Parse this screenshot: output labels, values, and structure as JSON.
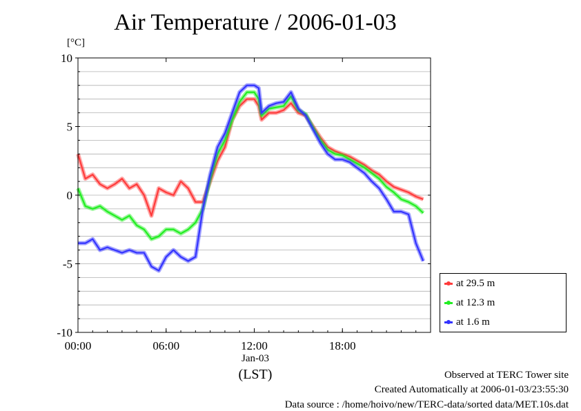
{
  "chart_data": {
    "type": "line",
    "title": "Air Temperature / 2006-01-03",
    "y_unit": "[°C]",
    "xlabel": "(LST)",
    "x_date_label": "Jan-03",
    "x_ticks": [
      "00:00",
      "06:00",
      "12:00",
      "18:00"
    ],
    "y_ticks": [
      "10",
      "5",
      "0",
      "-5",
      "-10"
    ],
    "xlim": [
      0,
      24
    ],
    "ylim": [
      -10,
      10
    ],
    "grid": true,
    "legend_position": "right-bottom",
    "x": [
      0,
      0.5,
      1,
      1.5,
      2,
      2.5,
      3,
      3.5,
      4,
      4.5,
      5,
      5.5,
      6,
      6.5,
      7,
      7.5,
      8,
      8.5,
      9,
      9.5,
      10,
      10.5,
      11,
      11.5,
      12,
      12.3,
      12.5,
      13,
      13.5,
      14,
      14.5,
      15,
      15.5,
      16,
      16.5,
      17,
      17.5,
      18,
      18.5,
      19,
      19.5,
      20,
      20.5,
      21,
      21.5,
      22,
      22.5,
      23,
      23.5
    ],
    "series": [
      {
        "name": "at 29.5 m",
        "color": "#ff3b3b",
        "values": [
          3.0,
          1.2,
          1.5,
          0.8,
          0.5,
          0.8,
          1.2,
          0.5,
          0.8,
          0.0,
          -1.5,
          0.5,
          0.2,
          0.0,
          1.0,
          0.5,
          -0.5,
          -0.5,
          1.0,
          2.5,
          3.5,
          5.5,
          6.5,
          7.0,
          7.0,
          6.5,
          5.5,
          6.0,
          6.0,
          6.2,
          6.7,
          6.0,
          5.8,
          5.0,
          4.2,
          3.5,
          3.2,
          3.0,
          2.8,
          2.5,
          2.2,
          1.8,
          1.5,
          1.0,
          0.6,
          0.4,
          0.2,
          -0.1,
          -0.3
        ]
      },
      {
        "name": "at 12.3 m",
        "color": "#22ee22",
        "values": [
          0.5,
          -0.8,
          -1.0,
          -0.8,
          -1.2,
          -1.5,
          -1.8,
          -1.5,
          -2.2,
          -2.5,
          -3.2,
          -3.0,
          -2.5,
          -2.5,
          -2.8,
          -2.5,
          -2.0,
          -1.0,
          1.2,
          3.0,
          4.0,
          5.5,
          6.8,
          7.5,
          7.5,
          7.0,
          5.8,
          6.3,
          6.4,
          6.5,
          7.2,
          6.2,
          5.9,
          4.9,
          4.0,
          3.3,
          3.0,
          2.9,
          2.6,
          2.3,
          2.0,
          1.6,
          1.2,
          0.6,
          0.2,
          -0.3,
          -0.5,
          -0.8,
          -1.3
        ]
      },
      {
        "name": "at 1.6 m",
        "color": "#3333ff",
        "values": [
          -3.5,
          -3.5,
          -3.2,
          -4.0,
          -3.8,
          -4.0,
          -4.2,
          -4.0,
          -4.2,
          -4.2,
          -5.2,
          -5.5,
          -4.5,
          -4.0,
          -4.5,
          -4.8,
          -4.5,
          -1.0,
          1.5,
          3.5,
          4.5,
          6.0,
          7.5,
          8.0,
          8.0,
          7.8,
          6.0,
          6.5,
          6.7,
          6.8,
          7.5,
          6.3,
          5.8,
          4.8,
          3.8,
          3.0,
          2.6,
          2.6,
          2.4,
          2.0,
          1.6,
          1.0,
          0.5,
          -0.3,
          -1.2,
          -1.2,
          -1.4,
          -3.5,
          -4.8
        ]
      }
    ]
  },
  "footer": {
    "observed": "Observed at TERC Tower site",
    "created": "Created Automatically at 2006-01-03/23:55:30",
    "source": "Data source : /home/hoivo/new/TERC-data/sorted  data/MET.10s.dat"
  }
}
